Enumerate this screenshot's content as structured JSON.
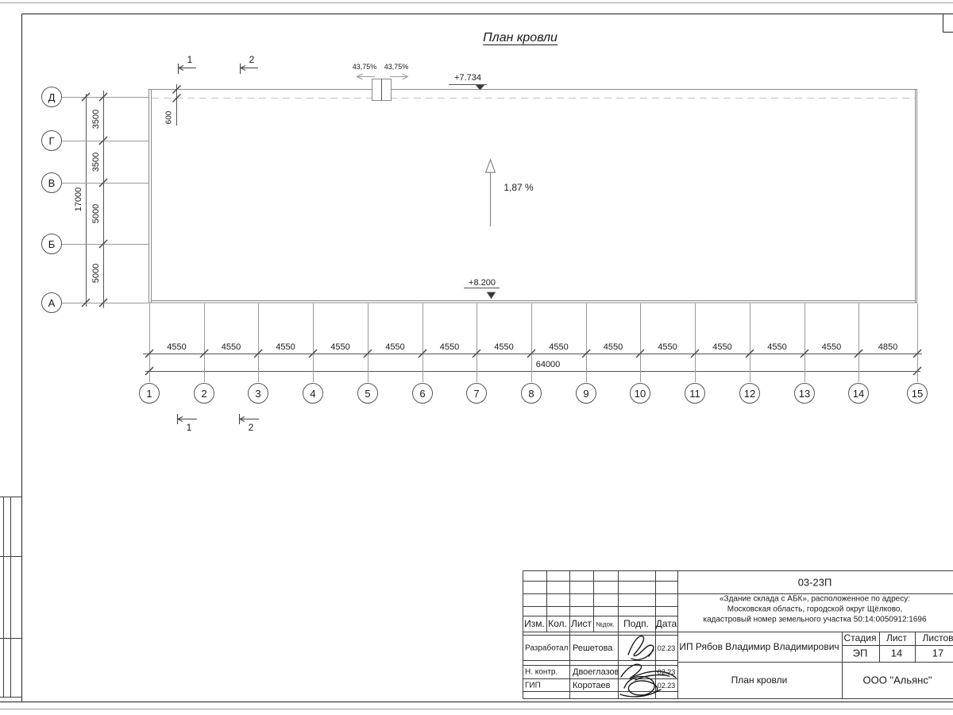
{
  "colors": {
    "line": "#8a8a8a",
    "frame": "#3c3c3c",
    "text": "#1a1a1a"
  },
  "plan": {
    "title": "План кровли",
    "slope_label": "1,87 %",
    "elevation_top": "+7.734",
    "elevation_bottom": "+8.200",
    "overhang_dim": "600",
    "ridge_slopes": [
      "43,75%",
      "43,75%"
    ],
    "section_marks": [
      "1",
      "2"
    ],
    "axes": {
      "rows": {
        "labels": [
          "Д",
          "Г",
          "В",
          "Б",
          "А"
        ],
        "dims": [
          "3500",
          "3500",
          "5000",
          "5000"
        ],
        "total": "17000"
      },
      "cols": {
        "labels": [
          "1",
          "2",
          "3",
          "4",
          "5",
          "6",
          "7",
          "8",
          "9",
          "10",
          "11",
          "12",
          "13",
          "14",
          "15"
        ],
        "dims": [
          "4550",
          "4550",
          "4550",
          "4550",
          "4550",
          "4550",
          "4550",
          "4550",
          "4550",
          "4550",
          "4550",
          "4550",
          "4550",
          "4850"
        ],
        "total": "64000"
      }
    }
  },
  "title_block": {
    "doc_number": "03-23П",
    "project": [
      "«Здание склада с АБК», расположенное по адресу:",
      "Московская область, городской округ Щёлково,",
      "кадастровый номер земельного участка 50:14:0050912:1696"
    ],
    "columns": [
      "Изм.",
      "Кол.",
      "Лист",
      "№док.",
      "Подп.",
      "Дата"
    ],
    "signers": [
      {
        "role": "Разработал",
        "name": "Решетова",
        "date": "02.23"
      },
      {
        "role": "Н. контр.",
        "name": "Двоеглазов",
        "date": "02.23"
      },
      {
        "role": "ГИП",
        "name": "Коротаев",
        "date": "02.23"
      }
    ],
    "client": "ИП Рябов Владимир Владимирович",
    "stage_label": "Стадия",
    "sheet_label": "Лист",
    "sheets_label": "Листов",
    "stage": "ЭП",
    "sheet_number": "14",
    "sheets_total": "17",
    "sheet_title": "План кровли",
    "company": "ООО \"Альянс\""
  }
}
